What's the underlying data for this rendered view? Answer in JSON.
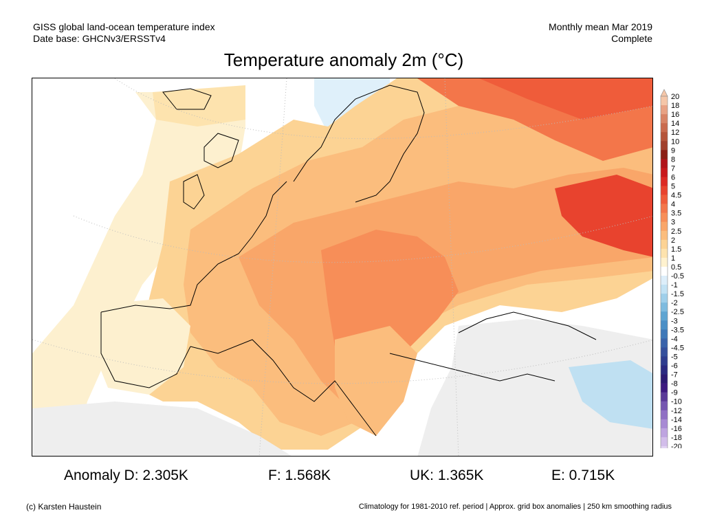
{
  "header": {
    "left_line1": "GISS global land-ocean temperature index",
    "left_line2": "Date base: GHCNv3/ERSSTv4",
    "right_line1": "Monthly mean Mar 2019",
    "right_line2": "Complete"
  },
  "title": "Temperature anomaly 2m (°C)",
  "legend": {
    "labels": [
      "20",
      "18",
      "16",
      "14",
      "12",
      "10",
      "9",
      "8",
      "7",
      "6",
      "5",
      "4.5",
      "4",
      "3.5",
      "3",
      "2.5",
      "2",
      "1.5",
      "1",
      "0.5",
      "-0.5",
      "-1",
      "-1.5",
      "-2",
      "-2.5",
      "-3",
      "-3.5",
      "-4",
      "-4.5",
      "-5",
      "-6",
      "-7",
      "-8",
      "-9",
      "-10",
      "-12",
      "-14",
      "-16",
      "-18",
      "-20"
    ],
    "colors": [
      "#f5c6a8",
      "#e8a284",
      "#d88466",
      "#c96a4e",
      "#b5543a",
      "#a1402c",
      "#8a1e14",
      "#b0141a",
      "#c8191c",
      "#dc2a24",
      "#e8432e",
      "#ef5c3a",
      "#f3764a",
      "#f78e58",
      "#f9a669",
      "#fbbd7d",
      "#fcd394",
      "#fde3ae",
      "#fff2cf",
      "#ffffff",
      "#ddeefa",
      "#c2e2f4",
      "#9fcfea",
      "#7ebbdf",
      "#5fa5d2",
      "#4b8fc6",
      "#3f78b8",
      "#3a63aa",
      "#35509c",
      "#2f3d8e",
      "#2b2a80",
      "#2c1a72",
      "#3d1a80",
      "#5a3a98",
      "#7556b0",
      "#9070c4",
      "#a88ad4",
      "#bea4e0",
      "#d2bdea",
      "#e2d3f2"
    ]
  },
  "stats": {
    "d": "Anomaly D: 2.305K",
    "f": "F: 1.568K",
    "uk": "UK: 1.365K",
    "e": "E: 0.715K"
  },
  "footer": {
    "left": "(c) Karsten Haustein",
    "right": "Climatology for 1981-2010 ref. period | Approx. grid box anomalies | 250 km smoothing radius"
  }
}
